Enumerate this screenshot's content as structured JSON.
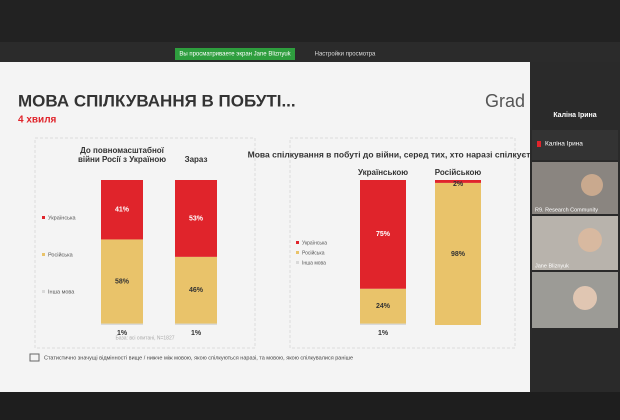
{
  "top_bar": {
    "sharing_notice": "Вы просматриваете экран Jane Bliznyuk",
    "view_settings": "Настройки просмотра"
  },
  "slide": {
    "title": "МОВА СПІЛКУВАННЯ В ПОБУТІ...",
    "subtitle": "4 хвиля",
    "logo": "Grad",
    "charts": [
      {
        "type": "stacked_bar",
        "categories": [
          "До повномасштабної війни Росії з Україною",
          "Зараз"
        ],
        "series": [
          {
            "name": "Українська",
            "color": "#e0242b",
            "values": [
              41,
              53
            ],
            "value_labels": [
              "41%",
              "53%"
            ]
          },
          {
            "name": "Російська",
            "color": "#e9c36a",
            "values": [
              58,
              46
            ],
            "value_labels": [
              "58%",
              "46%"
            ]
          },
          {
            "name": "Інша мова",
            "color": "#d9d9d9",
            "values": [
              1,
              1
            ],
            "value_labels": [
              "1%",
              "1%"
            ]
          }
        ],
        "note": "База: всі опитані, N=1827"
      },
      {
        "type": "stacked_bar",
        "title": "Мова спілкування в побуті до війни, серед тих, хто наразі спілкується...",
        "categories": [
          "Українською",
          "Російською"
        ],
        "series": [
          {
            "name": "Українська",
            "color": "#e0242b",
            "values": [
              75,
              2
            ],
            "value_labels": [
              "75%",
              "2%"
            ]
          },
          {
            "name": "Російська",
            "color": "#e9c36a",
            "values": [
              24,
              98
            ],
            "value_labels": [
              "24%",
              "98%"
            ]
          },
          {
            "name": "Інша мова",
            "color": "#d9d9d9",
            "values": [
              1,
              null
            ],
            "value_labels": [
              "1%",
              null
            ]
          }
        ]
      }
    ],
    "footnote": "Статистично значущі відмінності вище / нижче між мовою, якою спілкуються наразі, та мовою, якою спілкувалися раніше"
  },
  "sidebar": {
    "header": "Каліна Ірина",
    "participants": [
      "Каліна Ірина",
      "R9. Research Community",
      "Jane Bliznyuk"
    ]
  }
}
